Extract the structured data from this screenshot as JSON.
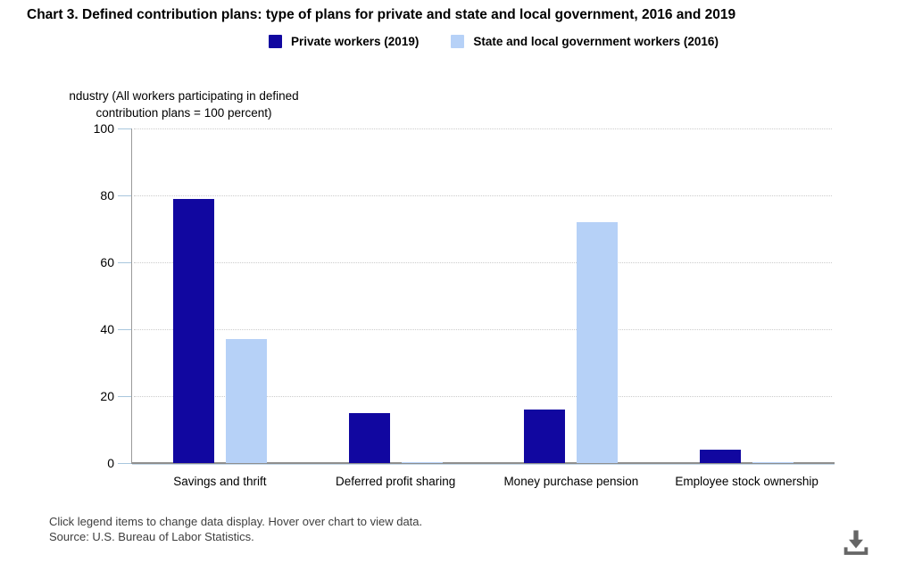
{
  "title": "Chart 3. Defined contribution plans: type of plans for private and state and local government, 2016 and 2019",
  "y_axis_label": {
    "line1": "ndustry (All workers participating in defined",
    "line2": "contribution plans = 100 percent)"
  },
  "footer": {
    "line1": "Click legend items to change data display. Hover over chart to view data.",
    "line2": "Source: U.S. Bureau of Labor Statistics."
  },
  "icons": {
    "download": "download-icon"
  },
  "colors": {
    "private_series": "#1107A0",
    "state_local_series": "#B6D1F7",
    "axis_line": "#9A9A9A",
    "baseline": "#8E8E8E",
    "gridline": "#CCCCCC",
    "download_icon": "#666666"
  },
  "chart_data": {
    "type": "bar",
    "title": "Chart 3. Defined contribution plans: type of plans for private and state and local government, 2016 and 2019",
    "categories": [
      "Savings and thrift",
      "Deferred profit sharing",
      "Money purchase pension",
      "Employee stock ownership"
    ],
    "series": [
      {
        "name": "Private workers (2019)",
        "color": "#1107A0",
        "values": [
          79,
          15,
          16,
          4
        ]
      },
      {
        "name": "State and local government workers (2016)",
        "color": "#B6D1F7",
        "values": [
          37,
          0.4,
          72,
          0.4
        ]
      }
    ],
    "xlabel": "",
    "ylabel": "ndustry (All workers participating in defined contribution plans = 100 percent)",
    "ylim": [
      0,
      100
    ],
    "yticks": [
      0,
      20,
      40,
      60,
      80,
      100
    ],
    "grid": "horizontal-dotted",
    "legend_position": "top"
  }
}
